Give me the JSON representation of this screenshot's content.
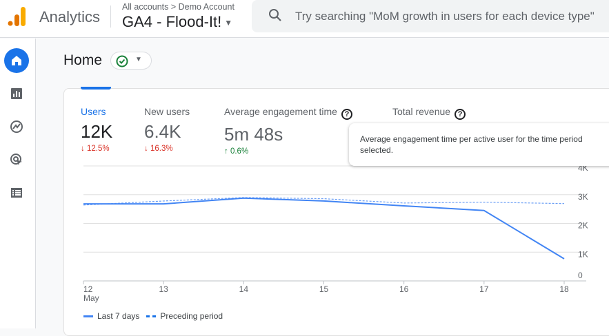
{
  "header": {
    "app_name": "Analytics",
    "breadcrumb": "All accounts > Demo Account",
    "property": "GA4 - Flood-It!",
    "search_placeholder": "Try searching \"MoM growth in users for each device type\""
  },
  "nav": {
    "items": [
      {
        "icon": "home-icon",
        "active": true
      },
      {
        "icon": "reports-icon"
      },
      {
        "icon": "explore-icon"
      },
      {
        "icon": "advertising-icon"
      },
      {
        "icon": "configure-icon"
      }
    ]
  },
  "page": {
    "title": "Home",
    "status_icon": "check-circle-icon"
  },
  "metrics": [
    {
      "label": "Users",
      "value": "12K",
      "change": "12.5%",
      "direction": "down",
      "selected": true
    },
    {
      "label": "New users",
      "value": "6.4K",
      "change": "16.3%",
      "direction": "down"
    },
    {
      "label": "Average engagement time",
      "value": "5m 48s",
      "change": "0.6%",
      "direction": "up",
      "help": true
    },
    {
      "label": "Total revenue",
      "help": true
    }
  ],
  "tooltip": "Average engagement time per active user for the time period selected.",
  "colors": {
    "accent": "#1a73e8",
    "down": "#d93025",
    "up": "#188038",
    "line": "#4285f4"
  },
  "chart_data": {
    "type": "line",
    "categories": [
      "12",
      "13",
      "14",
      "15",
      "16",
      "17",
      "18"
    ],
    "x_sublabel": "May",
    "y_ticks": [
      "0",
      "1K",
      "2K",
      "3K",
      "4K"
    ],
    "ylim": [
      0,
      4000
    ],
    "grid": true,
    "legend_position": "bottom-left",
    "series": [
      {
        "name": "Last 7 days",
        "style": "solid",
        "values": [
          2680,
          2680,
          2880,
          2780,
          2610,
          2450,
          770
        ]
      },
      {
        "name": "Preceding period",
        "style": "dashed",
        "values": [
          2640,
          2780,
          2900,
          2860,
          2710,
          2740,
          2690
        ]
      }
    ]
  }
}
